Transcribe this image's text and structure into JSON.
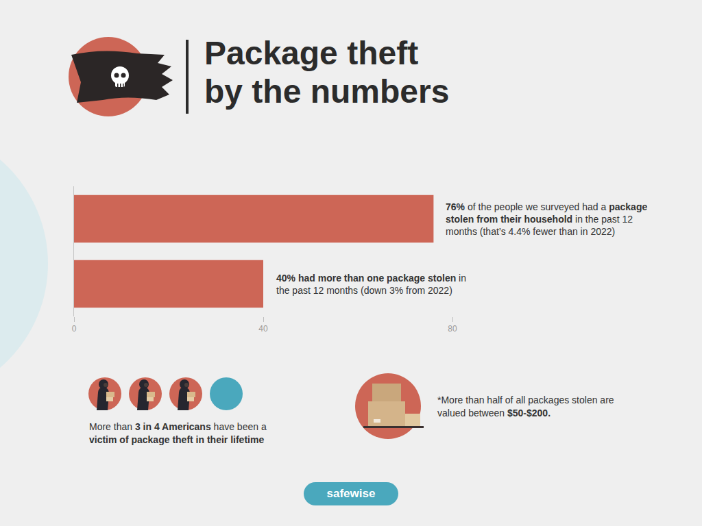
{
  "header": {
    "title_lines": [
      "Package theft",
      "by the numbers"
    ]
  },
  "chart_data": {
    "type": "bar",
    "orientation": "horizontal",
    "categories": [
      null,
      null
    ],
    "values": [
      76,
      40
    ],
    "color": "#cd6656",
    "xlim": [
      0,
      80
    ],
    "xticks": [
      0,
      40,
      80
    ],
    "grid": false,
    "data_labels": false,
    "tick_labels": "x",
    "annotations": [
      {
        "runs": [
          {
            "text": "76%",
            "bold": true
          },
          {
            "text": " of the people we surveyed had a "
          },
          {
            "text": "package stolen from their household",
            "bold": true
          },
          {
            "text": " in the past 12 months (that’s 4.4% fewer than in 2022)"
          }
        ]
      },
      {
        "runs": [
          {
            "text": "40% had more than one package stolen",
            "bold": true
          },
          {
            "text": " in the past 12 months (down 3% from 2022)"
          }
        ]
      }
    ]
  },
  "stats": [
    {
      "icon_array": {
        "filled": 3,
        "total": 4
      },
      "runs": [
        {
          "text": "More than "
        },
        {
          "text": "3 in 4 Americans",
          "bold": true
        },
        {
          "text": " have been a "
        },
        {
          "text": "victim of package theft in their lifetime",
          "bold": true
        }
      ]
    },
    {
      "runs": [
        {
          "text": "*More than half of all packages stolen are valued between "
        },
        {
          "text": "$50-$200.",
          "bold": true
        }
      ]
    }
  ],
  "footer": {
    "logo": "safewise"
  }
}
